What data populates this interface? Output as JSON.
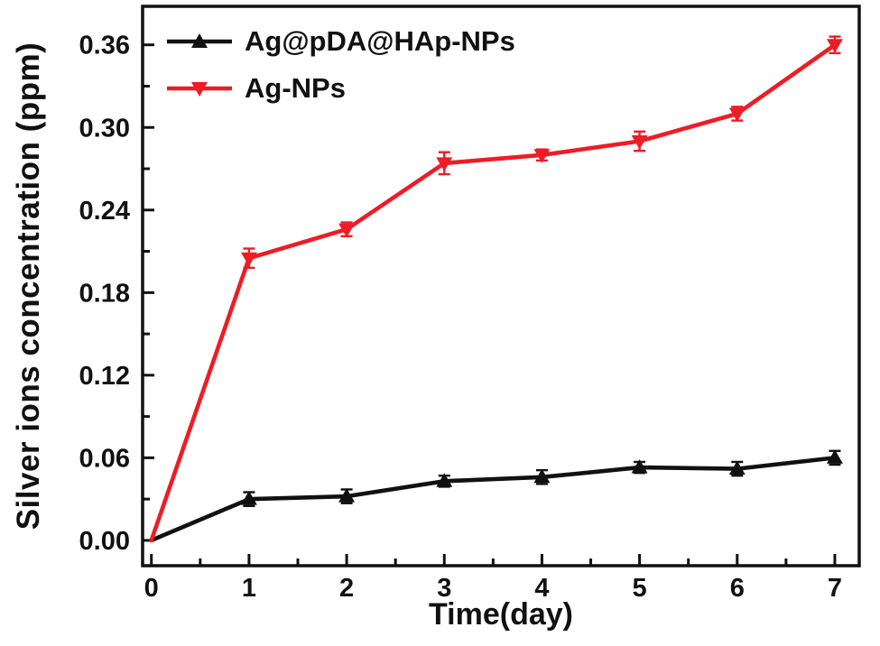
{
  "figure": {
    "background": "#ffffff",
    "axis_color": "#111111"
  },
  "chart_data": {
    "type": "line",
    "title": "",
    "xlabel": "Time(day)",
    "ylabel": "Silver ions concentration (ppm)",
    "grid": false,
    "legend_position": "top-left-inside",
    "x": [
      0,
      1,
      2,
      3,
      4,
      5,
      6,
      7
    ],
    "x_ticks": [
      0,
      1,
      2,
      3,
      4,
      5,
      6,
      7
    ],
    "y_ticks": [
      0,
      0.06,
      0.12,
      0.18,
      0.24,
      0.3,
      0.36
    ],
    "xlim": [
      -0.09,
      7.25
    ],
    "ylim": [
      -0.0184,
      0.388
    ],
    "series": [
      {
        "name": "Ag@pDA@HAp-NPs",
        "color": "#111111",
        "marker": "triangle-up",
        "values": [
          0,
          0.03,
          0.032,
          0.043,
          0.046,
          0.053,
          0.052,
          0.06
        ],
        "errors": [
          0,
          0.005,
          0.005,
          0.004,
          0.005,
          0.004,
          0.005,
          0.005
        ]
      },
      {
        "name": "Ag-NPs",
        "color": "#ee1c25",
        "marker": "triangle-down",
        "values": [
          0,
          0.205,
          0.226,
          0.274,
          0.28,
          0.29,
          0.31,
          0.36
        ],
        "errors": [
          0,
          0.007,
          0.005,
          0.008,
          0.004,
          0.007,
          0.005,
          0.006
        ]
      }
    ]
  }
}
